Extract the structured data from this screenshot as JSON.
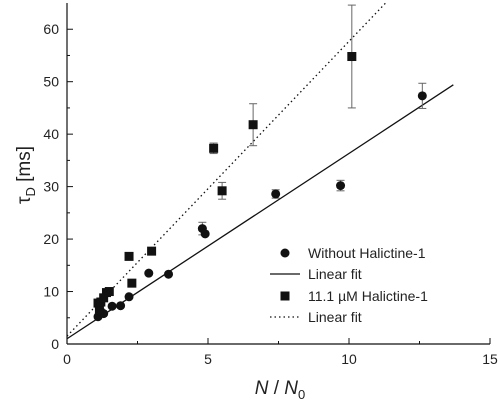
{
  "chart_data": {
    "type": "scatter",
    "title": "",
    "xlabel": {
      "main": "N",
      "slash": " / ",
      "sub_main": "N",
      "sub": "0"
    },
    "ylabel": {
      "greek": "τ",
      "sub": "D",
      "unit": " [ms]"
    },
    "xlim": [
      0,
      15
    ],
    "ylim": [
      0,
      65
    ],
    "xticks": [
      0,
      5,
      10,
      15
    ],
    "yticks": [
      0,
      10,
      20,
      30,
      40,
      50,
      60
    ],
    "grid": false,
    "legend_position": "bottom-right",
    "legend": [
      {
        "label": "Without Halictine-1",
        "symbol": "circle"
      },
      {
        "label": "Linear fit",
        "symbol": "solid-line"
      },
      {
        "label": "11.1 µM Halictine-1",
        "symbol": "square"
      },
      {
        "label": "Linear fit",
        "symbol": "dotted-line"
      }
    ],
    "series": [
      {
        "name": "Without Halictine-1",
        "marker": "circle",
        "points": [
          {
            "x": 1.1,
            "y": 5.2
          },
          {
            "x": 1.2,
            "y": 6.2
          },
          {
            "x": 1.3,
            "y": 5.8
          },
          {
            "x": 1.6,
            "y": 7.2
          },
          {
            "x": 1.9,
            "y": 7.3
          },
          {
            "x": 2.2,
            "y": 9.0
          },
          {
            "x": 2.9,
            "y": 13.5
          },
          {
            "x": 3.6,
            "y": 13.3
          },
          {
            "x": 4.8,
            "y": 22.0,
            "err": 1.2
          },
          {
            "x": 4.9,
            "y": 21.0
          },
          {
            "x": 7.4,
            "y": 28.6,
            "err": 0.8
          },
          {
            "x": 9.7,
            "y": 30.2,
            "err": 1.0
          },
          {
            "x": 12.6,
            "y": 47.3,
            "err": 2.4
          }
        ]
      },
      {
        "name": "11.1 µM Halictine-1",
        "marker": "square",
        "points": [
          {
            "x": 1.1,
            "y": 7.8
          },
          {
            "x": 1.15,
            "y": 6.5
          },
          {
            "x": 1.2,
            "y": 8.0
          },
          {
            "x": 1.3,
            "y": 8.8
          },
          {
            "x": 1.4,
            "y": 9.8
          },
          {
            "x": 1.5,
            "y": 10.0
          },
          {
            "x": 2.2,
            "y": 16.7
          },
          {
            "x": 2.3,
            "y": 11.6
          },
          {
            "x": 3.0,
            "y": 17.7
          },
          {
            "x": 5.2,
            "y": 37.3,
            "err": 1.0
          },
          {
            "x": 5.5,
            "y": 29.2,
            "err": 1.6
          },
          {
            "x": 6.6,
            "y": 41.8,
            "err": 4.0
          },
          {
            "x": 10.1,
            "y": 54.8,
            "err": 9.8
          }
        ]
      }
    ],
    "fits": [
      {
        "for": "Without Halictine-1",
        "style": "solid",
        "x": [
          0,
          13.7
        ],
        "y": [
          1.0,
          49.4
        ]
      },
      {
        "for": "11.1 µM Halictine-1",
        "style": "dotted",
        "x": [
          0,
          11.3
        ],
        "y": [
          1.5,
          65
        ]
      }
    ]
  }
}
